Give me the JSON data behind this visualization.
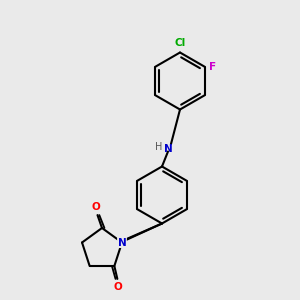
{
  "bg_color": "#eaeaea",
  "bond_color": "#000000",
  "bond_width": 1.5,
  "atom_colors": {
    "N": "#0000cc",
    "O": "#ff0000",
    "Cl": "#00aa00",
    "F": "#cc00cc",
    "H": "#555555"
  },
  "font_size": 7.5,
  "label_font_size": 7.5
}
